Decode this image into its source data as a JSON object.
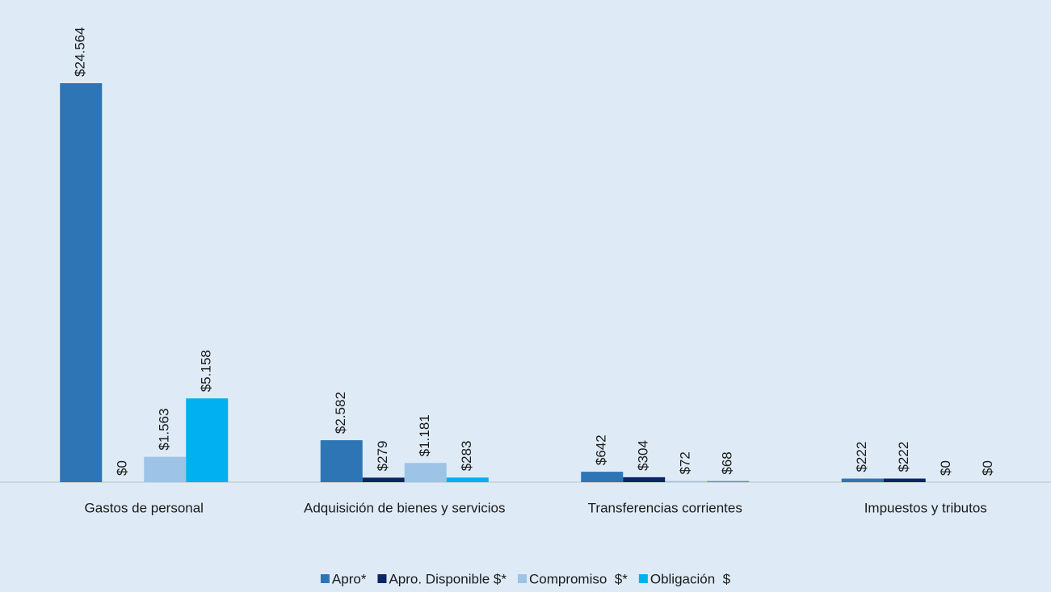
{
  "chart_data": {
    "type": "bar",
    "categories": [
      "Gastos de personal",
      "Adquisición de bienes y servicios",
      "Transferencias corrientes",
      "Impuestos y tributos"
    ],
    "series": [
      {
        "name": "Apro*",
        "color": "#2e75b6",
        "values": [
          24564,
          2582,
          642,
          222
        ],
        "value_labels": [
          "$24.564",
          "$2.582",
          "$642",
          "$222"
        ]
      },
      {
        "name": "Apro. Disponible $*",
        "color": "#0b2566",
        "values": [
          0,
          279,
          304,
          222
        ],
        "value_labels": [
          "$0",
          "$279",
          "$304",
          "$222"
        ]
      },
      {
        "name": "Compromiso  $*",
        "color": "#9dc3e6",
        "values": [
          1563,
          1181,
          72,
          0
        ],
        "value_labels": [
          "$1.563",
          "$1.181",
          "$72",
          "$0"
        ]
      },
      {
        "name": "Obligación  $",
        "color": "#00b0f0",
        "values": [
          5158,
          283,
          68,
          0
        ],
        "value_labels": [
          "$5.158",
          "$283",
          "$68",
          "$0"
        ]
      }
    ],
    "legend": "bottom"
  }
}
